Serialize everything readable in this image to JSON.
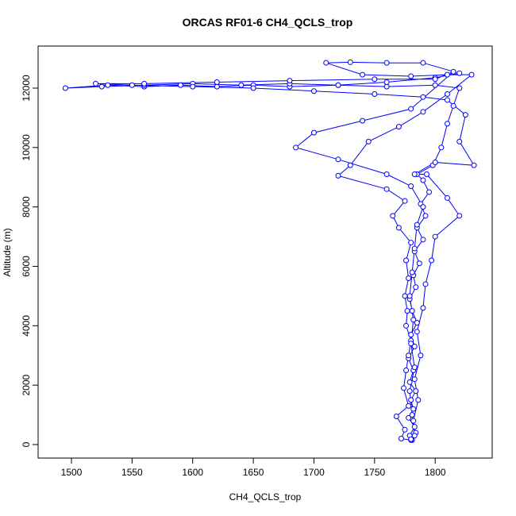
{
  "chart_data": {
    "type": "line",
    "title": "ORCAS RF01-6 CH4_QCLS_trop",
    "x_label": "CH4_QCLS_trop",
    "y_label": "Altitude (m)",
    "color": "#0000ff",
    "markers": true,
    "x": [
      1781,
      1779,
      1783,
      1778,
      1782,
      1780,
      1784,
      1779,
      1782,
      1778,
      1783,
      1780,
      1785,
      1781,
      1779,
      1784,
      1782,
      1787,
      1783,
      1790,
      1785,
      1792,
      1788,
      1795,
      1790,
      1785,
      1798,
      1805,
      1810,
      1815,
      1820,
      1800,
      1760,
      1720,
      1680,
      1650,
      1620,
      1590,
      1560,
      1530,
      1495,
      1525,
      1560,
      1600,
      1640,
      1680,
      1720,
      1760,
      1800,
      1820,
      1790,
      1760,
      1730,
      1710,
      1740,
      1780,
      1810,
      1830,
      1810,
      1790,
      1770,
      1745,
      1730,
      1720,
      1760,
      1775,
      1765,
      1770,
      1780,
      1776,
      1778,
      1775,
      1777,
      1776,
      1780,
      1778,
      1776,
      1774,
      1778,
      1768,
      1775,
      1772,
      1780,
      1784,
      1782,
      1786,
      1783,
      1788,
      1785,
      1790,
      1792,
      1797,
      1800,
      1820,
      1810,
      1793,
      1783,
      1800,
      1832,
      1820,
      1825,
      1810,
      1790,
      1750,
      1700,
      1650,
      1600,
      1550,
      1520,
      1560,
      1620,
      1680,
      1750,
      1800,
      1815,
      1780,
      1740,
      1700,
      1685,
      1720,
      1760,
      1780,
      1790,
      1785,
      1783,
      1781,
      1779,
      1782,
      1780,
      1783,
      1779,
      1781,
      1783,
      1780
    ],
    "values": [
      150,
      300,
      600,
      900,
      1200,
      1500,
      1800,
      2100,
      2500,
      2900,
      3300,
      3700,
      4100,
      4500,
      4900,
      5300,
      5700,
      6100,
      6500,
      6900,
      7300,
      7700,
      8100,
      8500,
      8900,
      9100,
      9400,
      10000,
      10800,
      11400,
      12000,
      12100,
      12050,
      12100,
      12050,
      12100,
      12050,
      12100,
      12050,
      12100,
      12000,
      12050,
      12100,
      12150,
      12100,
      12150,
      12100,
      12200,
      12350,
      12500,
      12850,
      12850,
      12870,
      12850,
      12450,
      12400,
      12450,
      12450,
      11800,
      11200,
      10700,
      10200,
      9400,
      9050,
      8600,
      8200,
      7700,
      7300,
      6800,
      6200,
      5600,
      5000,
      4500,
      4000,
      3500,
      3000,
      2500,
      1900,
      1300,
      950,
      500,
      200,
      150,
      400,
      800,
      1500,
      2200,
      3000,
      3800,
      4600,
      5400,
      6200,
      7000,
      7700,
      8300,
      9100,
      9100,
      9500,
      9400,
      10200,
      11100,
      11600,
      11700,
      11800,
      11900,
      12000,
      12050,
      12100,
      12150,
      12150,
      12200,
      12250,
      12300,
      12300,
      12550,
      11300,
      10900,
      10500,
      10000,
      9600,
      9100,
      8700,
      8000,
      7400,
      6600,
      5800,
      5000,
      4200,
      3400,
      2600,
      1800,
      1000,
      300,
      180
    ],
    "xlim": [
      1472.5,
      1847
    ],
    "ylim": [
      -454,
      13416
    ],
    "xticks": [
      1500,
      1550,
      1600,
      1650,
      1700,
      1750,
      1800
    ],
    "yticks": [
      0,
      2000,
      4000,
      6000,
      8000,
      10000,
      12000
    ]
  }
}
